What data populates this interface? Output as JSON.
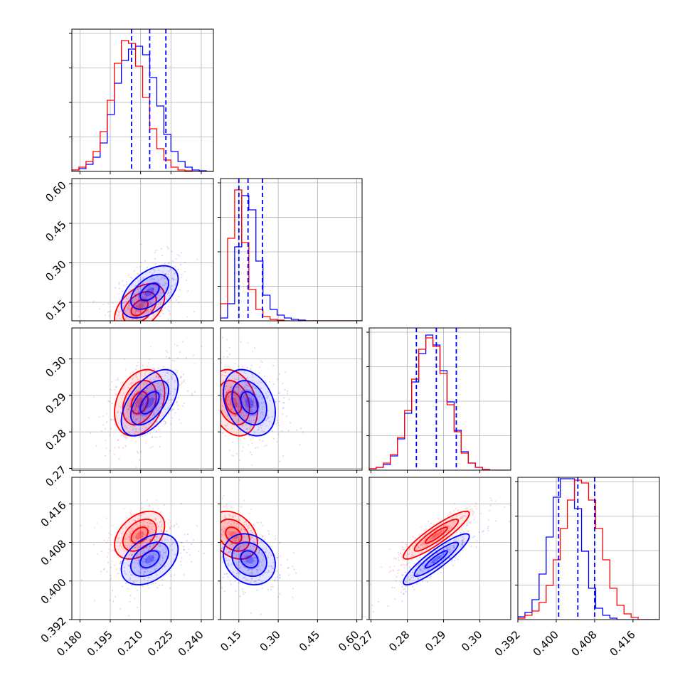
{
  "chart_data": {
    "type": "corner",
    "colors": {
      "series_a": "#0000ff",
      "series_b": "#ff0000",
      "quantile_line": "#0000ff",
      "grid": "#b0b0b0"
    },
    "grid": true,
    "series": [
      {
        "color": "#0000ff",
        "means": [
          0.2145,
          0.19,
          0.288,
          0.4045
        ],
        "sds": [
          0.0085,
          0.06,
          0.0055,
          0.0032
        ]
      },
      {
        "color": "#ff0000",
        "means": [
          0.2095,
          0.13,
          0.288,
          0.4095
        ],
        "sds": [
          0.0075,
          0.055,
          0.0055,
          0.003
        ]
      }
    ],
    "parameters": [
      {
        "range": [
          0.176,
          0.246
        ],
        "ticks": [
          0.18,
          0.195,
          0.21,
          0.225,
          0.24
        ],
        "tick_labels": [
          "0.180",
          "0.195",
          "0.210",
          "0.225",
          "0.240"
        ],
        "quantiles": [
          0.2055,
          0.2145,
          0.2225
        ]
      },
      {
        "range": [
          0.08,
          0.62
        ],
        "ticks": [
          0.15,
          0.3,
          0.45,
          0.6
        ],
        "tick_labels": [
          "0.15",
          "0.30",
          "0.45",
          "0.60"
        ],
        "quantiles": [
          0.15,
          0.185,
          0.24
        ]
      },
      {
        "range": [
          0.2695,
          0.3085
        ],
        "ticks": [
          0.27,
          0.28,
          0.29,
          0.3
        ],
        "tick_labels": [
          "0.27",
          "0.28",
          "0.29",
          "0.30"
        ],
        "quantiles": [
          0.2825,
          0.288,
          0.2935
        ]
      },
      {
        "range": [
          0.392,
          0.4215
        ],
        "ticks": [
          0.392,
          0.4,
          0.408,
          0.416
        ],
        "tick_labels": [
          "0.392",
          "0.400",
          "0.408",
          "0.416"
        ],
        "quantiles": [
          0.4005,
          0.4045,
          0.408
        ]
      }
    ],
    "histograms": [
      {
        "series_a": [
          0.01,
          0.02,
          0.05,
          0.1,
          0.2,
          0.4,
          0.62,
          0.78,
          0.86,
          0.88,
          0.82,
          0.66,
          0.46,
          0.26,
          0.14,
          0.07,
          0.03,
          0.01,
          0.005,
          0.0
        ],
        "series_b": [
          0.01,
          0.03,
          0.07,
          0.14,
          0.28,
          0.5,
          0.76,
          0.92,
          0.9,
          0.74,
          0.52,
          0.3,
          0.16,
          0.08,
          0.03,
          0.01,
          0.005,
          0.0,
          0.0,
          0.0
        ]
      },
      {
        "series_a": [
          0.02,
          0.12,
          0.52,
          0.88,
          0.78,
          0.42,
          0.18,
          0.08,
          0.04,
          0.02,
          0.01,
          0.005,
          0.0,
          0.0,
          0.0,
          0.0,
          0.0,
          0.0,
          0.0,
          0.0
        ],
        "series_b": [
          0.12,
          0.58,
          0.92,
          0.55,
          0.22,
          0.08,
          0.03,
          0.01,
          0.005,
          0.0,
          0.0,
          0.0,
          0.0,
          0.0,
          0.0,
          0.0,
          0.0,
          0.0,
          0.0,
          0.0
        ]
      },
      {
        "series_a": [
          0.01,
          0.02,
          0.04,
          0.1,
          0.22,
          0.4,
          0.62,
          0.82,
          0.95,
          0.88,
          0.7,
          0.48,
          0.28,
          0.13,
          0.05,
          0.02,
          0.005,
          0.0,
          0.0,
          0.0
        ],
        "series_b": [
          0.01,
          0.02,
          0.05,
          0.11,
          0.23,
          0.42,
          0.64,
          0.85,
          0.93,
          0.87,
          0.68,
          0.46,
          0.27,
          0.12,
          0.05,
          0.02,
          0.005,
          0.0,
          0.0,
          0.0
        ]
      },
      {
        "series_a": [
          0.02,
          0.05,
          0.14,
          0.32,
          0.58,
          0.86,
          0.99,
          0.99,
          0.78,
          0.48,
          0.22,
          0.08,
          0.03,
          0.01,
          0.0,
          0.0,
          0.0,
          0.0,
          0.0,
          0.0
        ],
        "series_b": [
          0.01,
          0.03,
          0.06,
          0.12,
          0.24,
          0.42,
          0.64,
          0.84,
          0.98,
          0.96,
          0.84,
          0.64,
          0.42,
          0.22,
          0.1,
          0.04,
          0.015,
          0.0,
          0.0,
          0.0
        ]
      }
    ],
    "pair_correlations": {
      "1,0": {
        "series_a": 0.5,
        "series_b": 0.45
      },
      "2,0": {
        "series_a": 0.55,
        "series_b": 0.3
      },
      "2,1": {
        "series_a": -0.3,
        "series_b": -0.25
      },
      "3,0": {
        "series_a": 0.4,
        "series_b": 0.4
      },
      "3,1": {
        "series_a": -0.2,
        "series_b": -0.3
      },
      "3,2": {
        "series_a": 0.9,
        "series_b": 0.9
      }
    }
  }
}
